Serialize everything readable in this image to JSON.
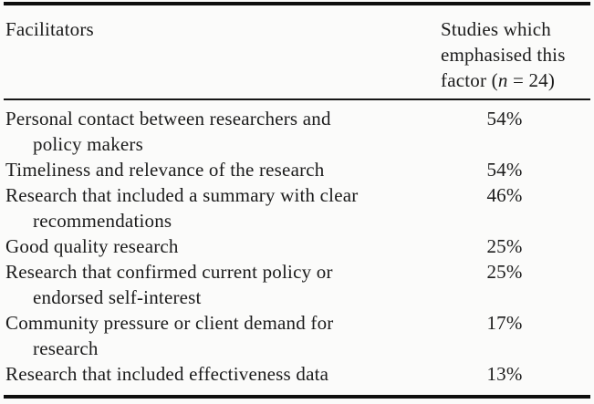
{
  "table": {
    "header": {
      "col1": "Facilitators",
      "col2_line1": "Studies which",
      "col2_line2": "emphasised this",
      "col2_line3_pre": "factor (",
      "col2_line3_n": "n",
      "col2_line3_post": " = 24)"
    },
    "rows": [
      {
        "line1": "Personal contact between researchers and",
        "line2": "policy makers",
        "value": "54%"
      },
      {
        "line1": "Timeliness and relevance of the research",
        "value": "54%"
      },
      {
        "line1": "Research that included a summary with clear",
        "line2": "recommendations",
        "value": "46%"
      },
      {
        "line1": "Good quality research",
        "value": "25%"
      },
      {
        "line1": "Research that confirmed current policy or",
        "line2": "endorsed self-interest",
        "value": "25%"
      },
      {
        "line1": "Community pressure or client demand for",
        "line2": "research",
        "value": "17%"
      },
      {
        "line1": "Research that included effectiveness data",
        "value": "13%"
      }
    ]
  },
  "colors": {
    "text": "#1b1b1b",
    "rule": "#0e0e0e",
    "background": "#fbfbfa"
  }
}
